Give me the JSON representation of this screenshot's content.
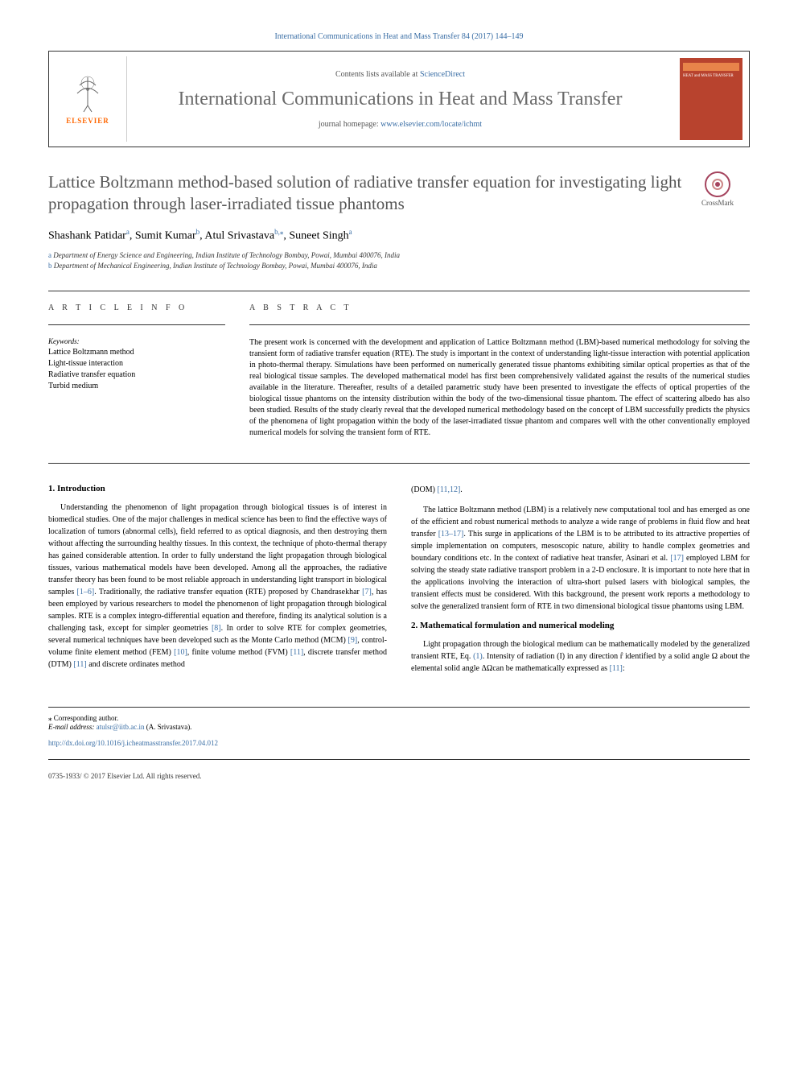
{
  "top_citation": "International Communications in Heat and Mass Transfer 84 (2017) 144–149",
  "header": {
    "contents_prefix": "Contents lists available at ",
    "contents_link": "ScienceDirect",
    "journal_name": "International Communications in Heat and Mass Transfer",
    "homepage_prefix": "journal homepage: ",
    "homepage_link": "www.elsevier.com/locate/ichmt",
    "publisher": "ELSEVIER",
    "cover_title": "HEAT and MASS TRANSFER"
  },
  "crossmark_label": "CrossMark",
  "article": {
    "title": "Lattice Boltzmann method-based solution of radiative transfer equation for investigating light propagation through laser-irradiated tissue phantoms",
    "authors": [
      {
        "name": "Shashank Patidar",
        "sup": "a"
      },
      {
        "name": "Sumit Kumar",
        "sup": "b"
      },
      {
        "name": "Atul Srivastava",
        "sup": "b,⁎"
      },
      {
        "name": "Suneet Singh",
        "sup": "a"
      }
    ],
    "affiliations": [
      {
        "label": "a",
        "text": "Department of Energy Science and Engineering, Indian Institute of Technology Bombay, Powai, Mumbai 400076, India"
      },
      {
        "label": "b",
        "text": "Department of Mechanical Engineering, Indian Institute of Technology Bombay, Powai, Mumbai 400076, India"
      }
    ]
  },
  "info": {
    "label": "A R T I C L E  I N F O",
    "keywords_label": "Keywords:",
    "keywords": [
      "Lattice Boltzmann method",
      "Light-tissue interaction",
      "Radiative transfer equation",
      "Turbid medium"
    ]
  },
  "abstract": {
    "label": "A B S T R A C T",
    "text": "The present work is concerned with the development and application of Lattice Boltzmann method (LBM)-based numerical methodology for solving the transient form of radiative transfer equation (RTE). The study is important in the context of understanding light-tissue interaction with potential application in photo-thermal therapy. Simulations have been performed on numerically generated tissue phantoms exhibiting similar optical properties as that of the real biological tissue samples. The developed mathematical model has first been comprehensively validated against the results of the numerical studies available in the literature. Thereafter, results of a detailed parametric study have been presented to investigate the effects of optical properties of the biological tissue phantoms on the intensity distribution within the body of the two-dimensional tissue phantom. The effect of scattering albedo has also been studied. Results of the study clearly reveal that the developed numerical methodology based on the concept of LBM successfully predicts the physics of the phenomena of light propagation within the body of the laser-irradiated tissue phantom and compares well with the other conventionally employed numerical models for solving the transient form of RTE."
  },
  "body": {
    "section1_heading": "1. Introduction",
    "section1_p1": "Understanding the phenomenon of light propagation through biological tissues is of interest in biomedical studies. One of the major challenges in medical science has been to find the effective ways of localization of tumors (abnormal cells), field referred to as optical diagnosis, and then destroying them without affecting the surrounding healthy tissues. In this context, the technique of photo-thermal therapy has gained considerable attention. In order to fully understand the light propagation through biological tissues, various mathematical models have been developed. Among all the approaches, the radiative transfer theory has been found to be most reliable approach in understanding light transport in biological samples ",
    "section1_p1_ref1": "[1–6]",
    "section1_p1_cont": ". Traditionally, the radiative transfer equation (RTE) proposed by Chandrasekhar ",
    "section1_p1_ref2": "[7]",
    "section1_p1_cont2": ", has been employed by various researchers to model the phenomenon of light propagation through biological samples. RTE is a complex integro-differential equation and therefore, finding its analytical solution is a challenging task, except for simpler geometries ",
    "section1_p1_ref3": "[8]",
    "section1_p1_cont3": ". In order to solve RTE for complex geometries, several numerical techniques have been developed such as the Monte Carlo method (MCM) ",
    "section1_p1_ref4": "[9]",
    "section1_p1_cont4": ", control-volume finite element method (FEM) ",
    "section1_p1_ref5": "[10]",
    "section1_p1_cont5": ", finite volume method (FVM) ",
    "section1_p1_ref6": "[11]",
    "section1_p1_cont6": ", discrete transfer method (DTM) ",
    "section1_p1_ref7": "[11]",
    "section1_p1_cont7": " and discrete ordinates method",
    "col2_start": "(DOM) ",
    "col2_ref1": "[11,12]",
    "col2_start_end": ".",
    "col2_p2_a": "The lattice Boltzmann method (LBM) is a relatively new computational tool and has emerged as one of the efficient and robust numerical methods to analyze a wide range of problems in fluid flow and heat transfer ",
    "col2_ref2": "[13–17]",
    "col2_p2_b": ". This surge in applications of the LBM is to be attributed to its attractive properties of simple implementation on computers, mesoscopic nature, ability to handle complex geometries and boundary conditions etc. In the context of radiative heat transfer, Asinari et al. ",
    "col2_ref3": "[17]",
    "col2_p2_c": " employed LBM for solving the steady state radiative transport problem in a 2-D enclosure. It is important to note here that in the applications involving the interaction of ultra-short pulsed lasers with biological samples, the transient effects must be considered. With this background, the present work reports a methodology to solve the generalized transient form of RTE in two dimensional biological tissue phantoms using LBM.",
    "section2_heading": "2. Mathematical formulation and numerical modeling",
    "section2_p1_a": "Light propagation through the biological medium can be mathematically modeled by the generalized transient RTE, Eq. ",
    "section2_ref_eq": "(1)",
    "section2_p1_b": ". Intensity of radiation (I) in any direction r̂ identified by a solid angle Ω about the elemental solid angle ΔΩcan be mathematically expressed as ",
    "section2_ref1": "[11]",
    "section2_p1_c": ":"
  },
  "footer": {
    "corresp_marker": "⁎",
    "corresp_text": " Corresponding author.",
    "email_label": "E-mail address: ",
    "email": "atulsr@iitb.ac.in",
    "email_name": " (A. Srivastava).",
    "doi": "http://dx.doi.org/10.1016/j.icheatmasstransfer.2017.04.012",
    "issn_copyright": "0735-1933/ © 2017 Elsevier Ltd. All rights reserved."
  }
}
